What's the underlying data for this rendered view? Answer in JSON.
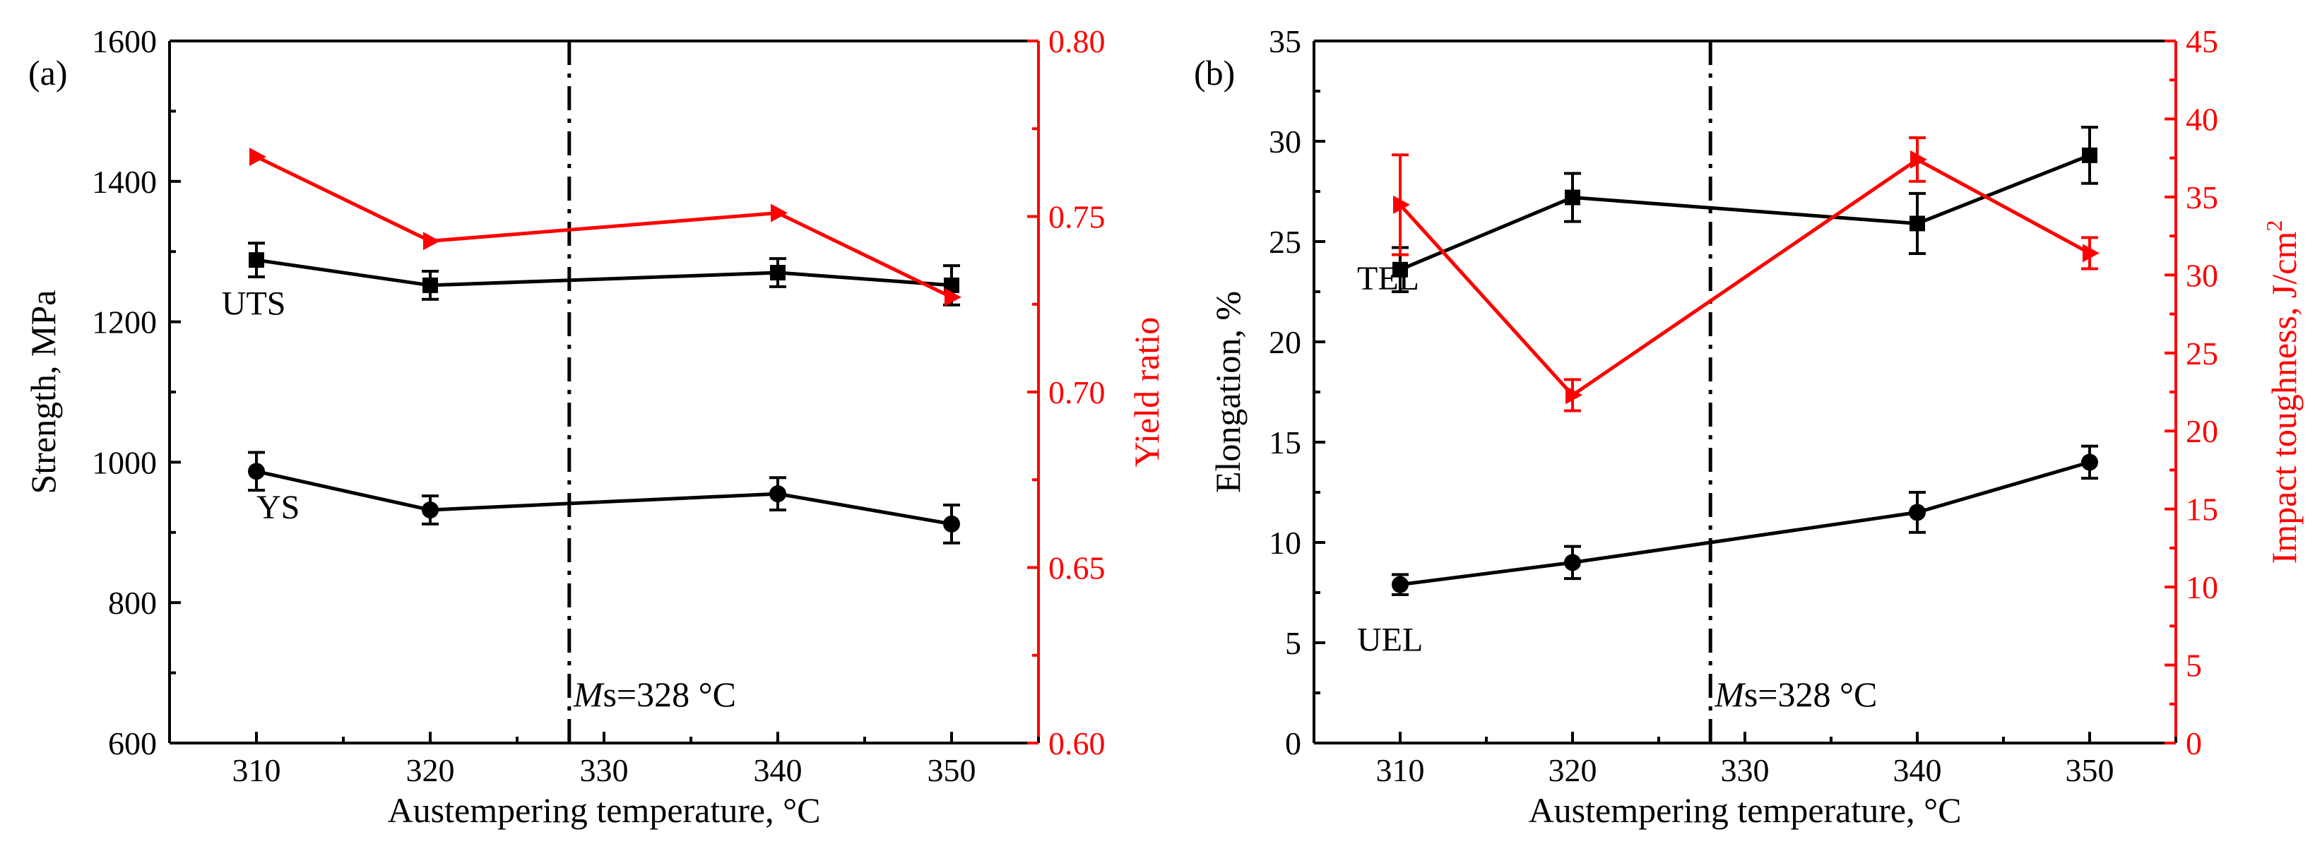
{
  "chart_data": [
    {
      "type": "line",
      "panel_label": "(a)",
      "xlabel": "Austempering temperature, °C",
      "ylabel_left": "Strength, MPa",
      "ylabel_right": "Yield ratio",
      "xlim": [
        305,
        355
      ],
      "xticks": [
        310,
        320,
        330,
        340,
        350
      ],
      "ylim_left": [
        600,
        1600
      ],
      "yticks_left": [
        600,
        800,
        1000,
        1200,
        1400,
        1600
      ],
      "ylim_right": [
        0.6,
        0.8
      ],
      "yticks_right": [
        "0.60",
        "0.65",
        "0.70",
        "0.75",
        "0.80"
      ],
      "vline": {
        "x": 328,
        "label_italic": "M",
        "label_rest": "s=328 °C"
      },
      "series": [
        {
          "name": "UTS",
          "axis": "left",
          "color": "#000000",
          "marker": "square",
          "x": [
            310,
            320,
            340,
            350
          ],
          "y": [
            1288,
            1252,
            1270,
            1252
          ],
          "err": [
            24,
            20,
            20,
            28
          ]
        },
        {
          "name": "YS",
          "axis": "left",
          "color": "#000000",
          "marker": "circle",
          "x": [
            310,
            320,
            340,
            350
          ],
          "y": [
            987,
            932,
            955,
            912
          ],
          "err": [
            27,
            20,
            23,
            27
          ]
        },
        {
          "name": "Yield ratio",
          "axis": "right",
          "color": "#ff0000",
          "marker": "triangle-right",
          "x": [
            310,
            320,
            340,
            350
          ],
          "y": [
            0.767,
            0.743,
            0.751,
            0.727
          ]
        }
      ],
      "annotations": [
        {
          "text": "UTS",
          "x": 308,
          "y": 1210
        },
        {
          "text": "YS",
          "x": 310,
          "y": 920
        }
      ]
    },
    {
      "type": "line",
      "panel_label": "(b)",
      "xlabel": "Austempering temperature, °C",
      "ylabel_left": "Elongation, %",
      "ylabel_right": "Impact toughness, J/cm",
      "ylabel_right_sup": "2",
      "xlim": [
        305,
        355
      ],
      "xticks": [
        310,
        320,
        330,
        340,
        350
      ],
      "ylim_left": [
        0,
        35
      ],
      "yticks_left": [
        0,
        5,
        10,
        15,
        20,
        25,
        30,
        35
      ],
      "ylim_right": [
        0,
        45
      ],
      "yticks_right": [
        "0",
        "5",
        "10",
        "15",
        "20",
        "25",
        "30",
        "35",
        "40",
        "45"
      ],
      "vline": {
        "x": 328,
        "label_italic": "M",
        "label_rest": "s=328 °C"
      },
      "series": [
        {
          "name": "TEL",
          "axis": "left",
          "color": "#000000",
          "marker": "square",
          "x": [
            310,
            320,
            340,
            350
          ],
          "y": [
            23.6,
            27.2,
            25.9,
            29.3
          ],
          "err": [
            1.1,
            1.2,
            1.5,
            1.4
          ]
        },
        {
          "name": "UEL",
          "axis": "left",
          "color": "#000000",
          "marker": "circle",
          "x": [
            310,
            320,
            340,
            350
          ],
          "y": [
            7.9,
            9.0,
            11.5,
            14.0
          ],
          "err": [
            0.5,
            0.8,
            1.0,
            0.8
          ]
        },
        {
          "name": "Impact toughness",
          "axis": "right",
          "color": "#ff0000",
          "marker": "triangle-right",
          "x": [
            310,
            320,
            340,
            350
          ],
          "y": [
            34.5,
            22.3,
            37.4,
            31.4
          ],
          "err": [
            3.2,
            1.0,
            1.4,
            1.0
          ]
        }
      ],
      "annotations": [
        {
          "text": "TEL",
          "x": 307.5,
          "y": 22.6
        },
        {
          "text": "UEL",
          "x": 307.5,
          "y": 4.6
        }
      ]
    }
  ]
}
